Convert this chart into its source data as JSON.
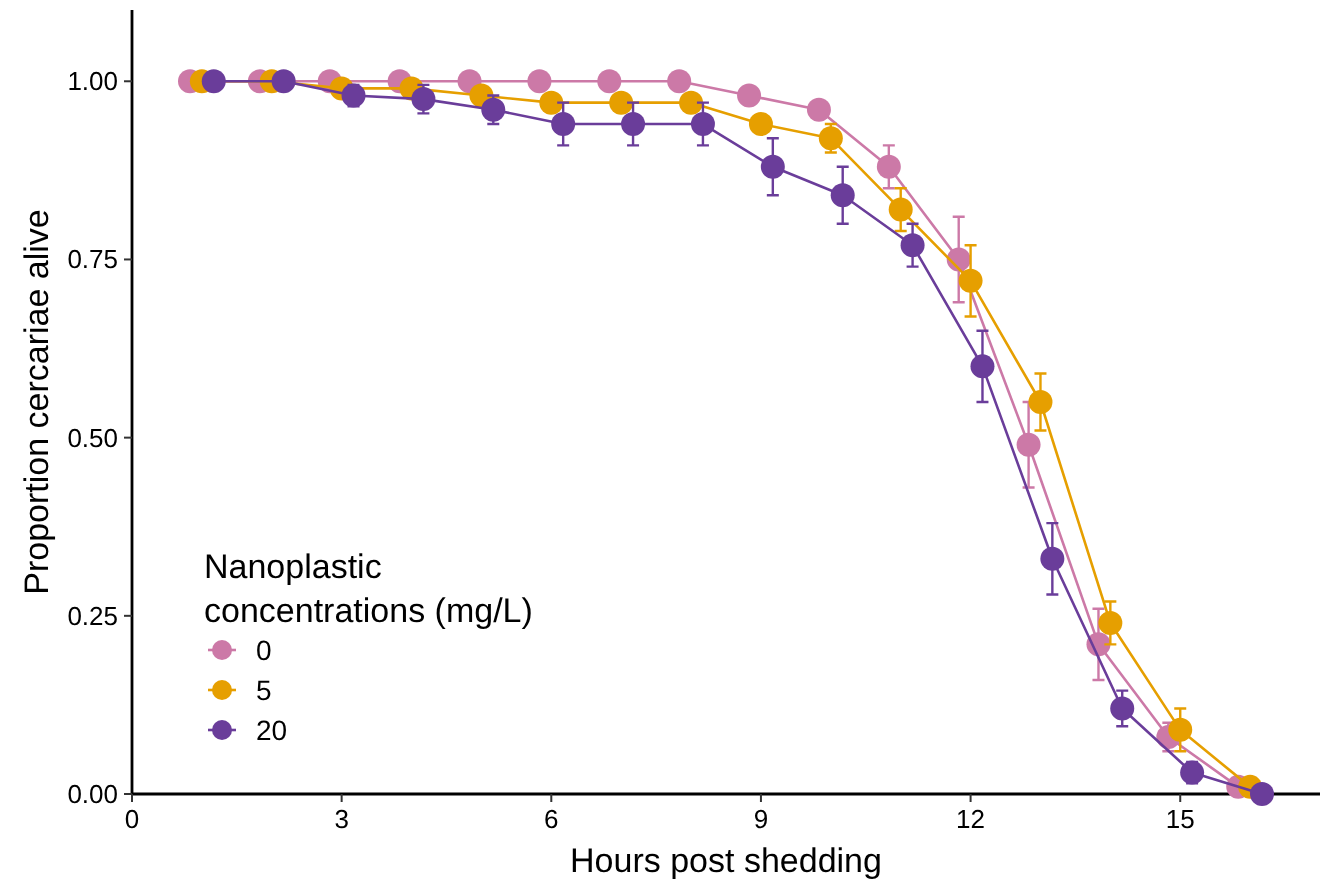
{
  "chart_data": {
    "type": "line",
    "xlabel": "Hours post shedding",
    "ylabel": "Proportion cercariae alive",
    "legend_title": "Nanoplastic\nconcentrations (mg/L)",
    "legend": "bottom left",
    "grid": false,
    "marker": "circle",
    "xlim": [
      0,
      17
    ],
    "xticks": [
      0,
      3,
      6,
      9,
      12,
      15
    ],
    "ylim": [
      0,
      1.1
    ],
    "yticks": [
      {
        "value": 0,
        "label": "0.00"
      },
      {
        "value": 0.25,
        "label": "0.25"
      },
      {
        "value": 0.5,
        "label": "0.50"
      },
      {
        "value": 0.75,
        "label": "0.75"
      },
      {
        "value": 1,
        "label": "1.00"
      }
    ],
    "series": [
      {
        "name": "0",
        "color": "#cc79a7",
        "x": [
          0.83,
          1.83,
          2.83,
          3.83,
          4.83,
          5.83,
          6.83,
          7.83,
          8.83,
          9.83,
          10.83,
          11.83,
          12.83,
          13.83,
          14.83,
          15.83
        ],
        "values": [
          1,
          1,
          1,
          1,
          1,
          1,
          1,
          1,
          0.98,
          0.96,
          0.88,
          0.75,
          0.49,
          0.21,
          0.08,
          0.01
        ],
        "errors": [
          null,
          null,
          null,
          null,
          null,
          null,
          null,
          null,
          null,
          null,
          0.03,
          0.06,
          0.06,
          0.05,
          0.02,
          null
        ]
      },
      {
        "name": "5",
        "color": "#e69f00",
        "x": [
          1,
          2,
          3,
          4,
          5,
          6,
          7,
          8,
          9,
          10,
          11,
          12,
          13,
          14,
          15,
          16
        ],
        "values": [
          1,
          1,
          0.99,
          0.99,
          0.98,
          0.97,
          0.97,
          0.97,
          0.94,
          0.92,
          0.82,
          0.72,
          0.55,
          0.24,
          0.09,
          0.01
        ],
        "errors": [
          null,
          null,
          null,
          null,
          null,
          null,
          null,
          null,
          null,
          0.02,
          0.03,
          0.05,
          0.04,
          0.03,
          0.03,
          null
        ]
      },
      {
        "name": "20",
        "color": "#6a3d9a",
        "x": [
          1.17,
          2.17,
          3.17,
          4.17,
          5.17,
          6.17,
          7.17,
          8.17,
          9.17,
          10.17,
          11.17,
          12.17,
          13.17,
          14.17,
          15.17,
          16.17
        ],
        "values": [
          1,
          1,
          0.98,
          0.975,
          0.96,
          0.94,
          0.94,
          0.94,
          0.88,
          0.84,
          0.77,
          0.6,
          0.33,
          0.12,
          0.03,
          0
        ],
        "errors": [
          null,
          null,
          0.015,
          0.02,
          0.02,
          0.03,
          0.03,
          0.03,
          0.04,
          0.04,
          0.03,
          0.05,
          0.05,
          0.025,
          0.015,
          null
        ]
      }
    ]
  }
}
